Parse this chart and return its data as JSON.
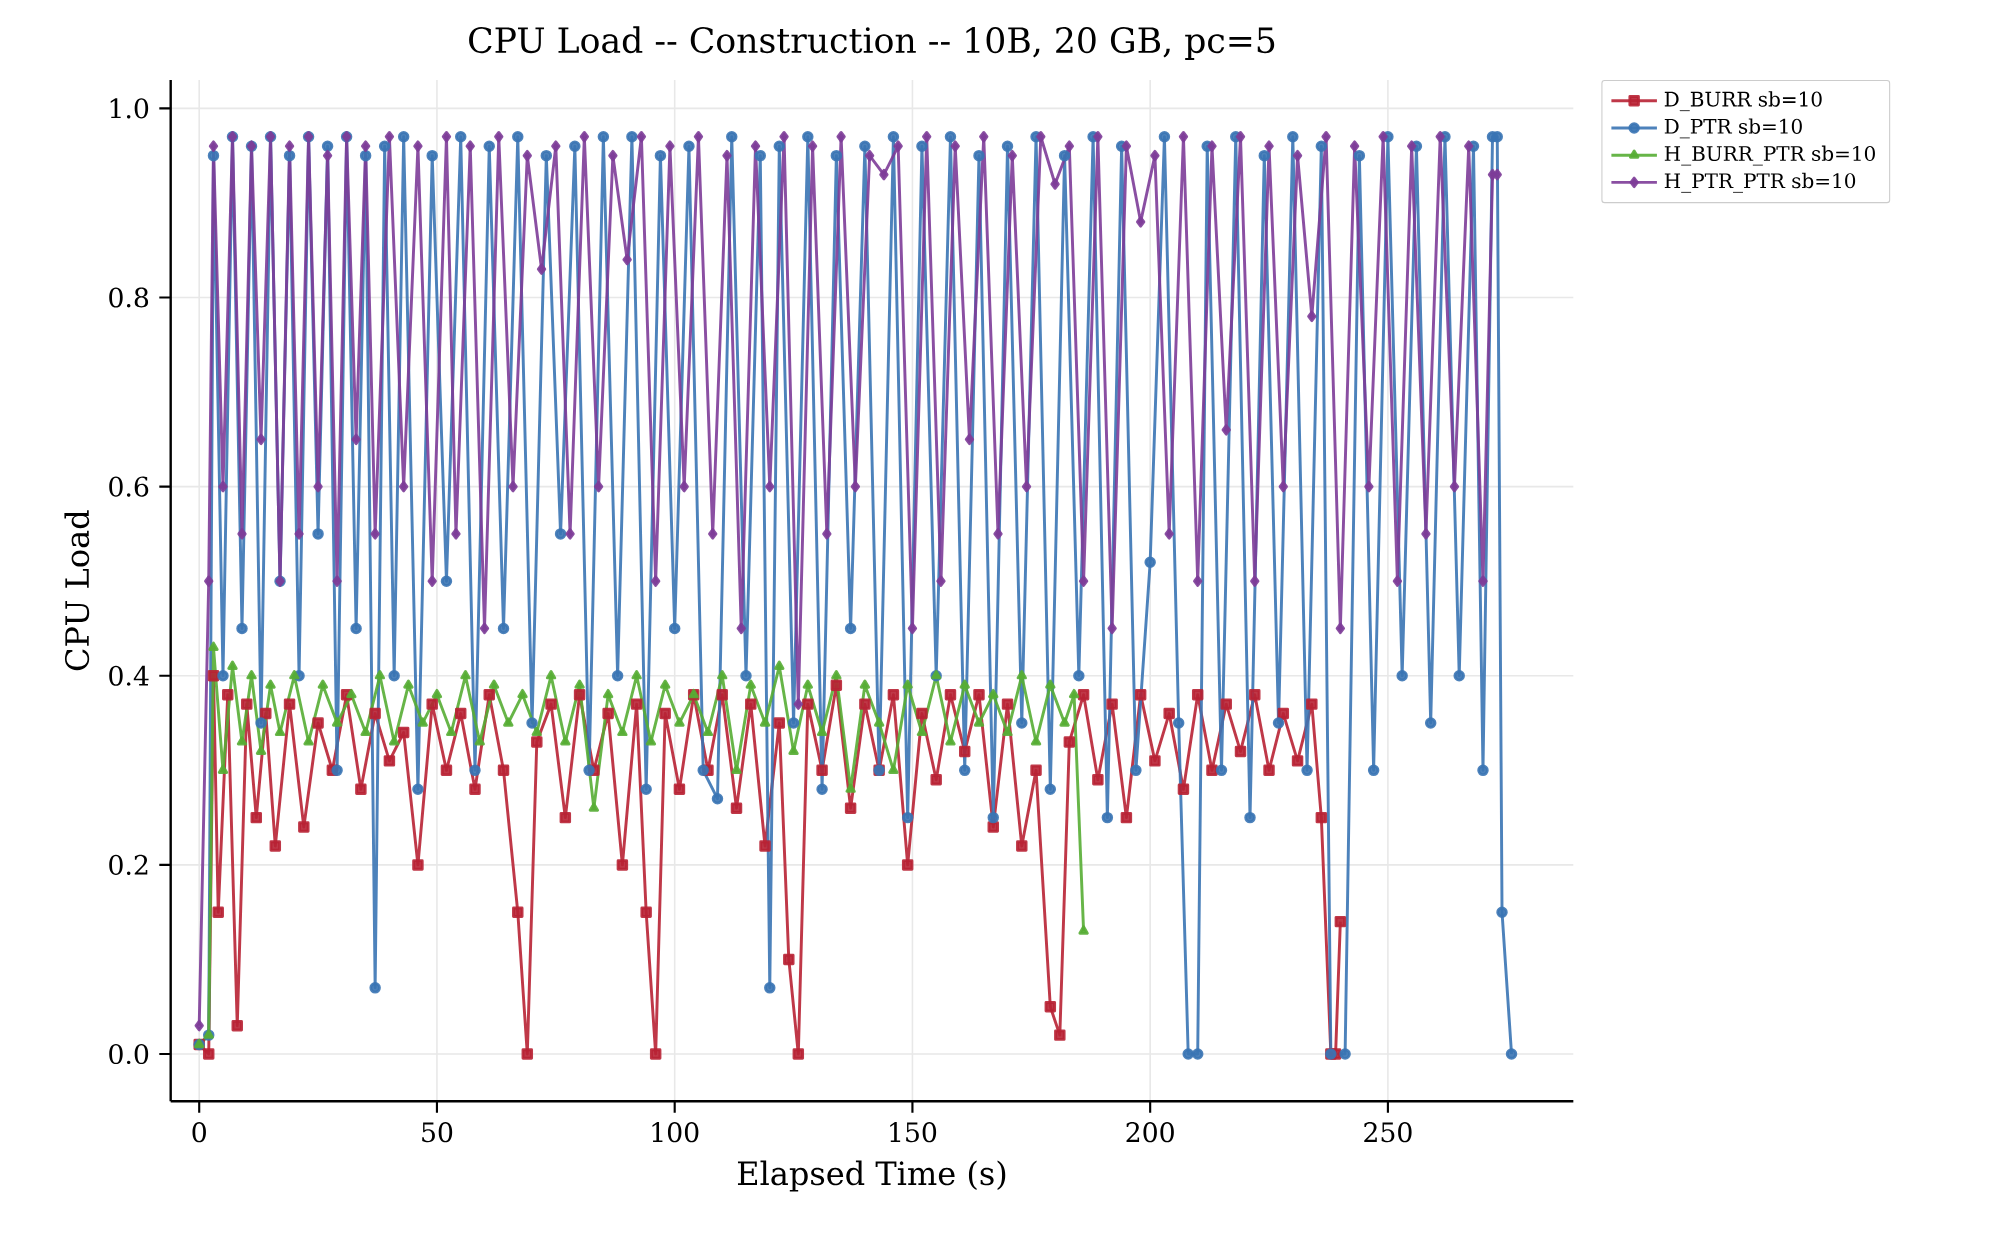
{
  "chart_data": {
    "type": "line",
    "title": "CPU Load -- Construction -- 10B, 20 GB, pc=5",
    "xlabel": "Elapsed Time (s)",
    "ylabel": "CPU Load",
    "xlim": [
      -6,
      289
    ],
    "ylim": [
      -0.05,
      1.03
    ],
    "xticks": [
      0,
      50,
      100,
      150,
      200,
      250
    ],
    "yticks": [
      {
        "value": 0,
        "label": "0.0"
      },
      {
        "value": 0.2,
        "label": "0.2"
      },
      {
        "value": 0.4,
        "label": "0.4"
      },
      {
        "value": 0.6,
        "label": "0.6"
      },
      {
        "value": 0.8,
        "label": "0.8"
      },
      {
        "value": 1.0,
        "label": "1.0"
      }
    ],
    "grid": true,
    "legend": "top right",
    "series": [
      {
        "name": "D_BURR sb=10",
        "color": "#b82234",
        "marker": "square",
        "x": [
          0,
          2,
          3,
          4,
          6,
          8,
          10,
          12,
          14,
          16,
          19,
          22,
          25,
          28,
          31,
          34,
          37,
          40,
          43,
          46,
          49,
          52,
          55,
          58,
          61,
          64,
          67,
          69,
          71,
          74,
          77,
          80,
          83,
          86,
          89,
          92,
          94,
          96,
          98,
          101,
          104,
          107,
          110,
          113,
          116,
          119,
          122,
          124,
          126,
          128,
          131,
          134,
          137,
          140,
          143,
          146,
          149,
          152,
          155,
          158,
          161,
          164,
          167,
          170,
          173,
          176,
          179,
          181,
          183,
          186,
          189,
          192,
          195,
          198,
          201,
          204,
          207,
          210,
          213,
          216,
          219,
          222,
          225,
          228,
          231,
          234,
          236,
          238,
          239,
          240
        ],
        "values": [
          0.01,
          0.0,
          0.4,
          0.15,
          0.38,
          0.03,
          0.37,
          0.25,
          0.36,
          0.22,
          0.37,
          0.24,
          0.35,
          0.3,
          0.38,
          0.28,
          0.36,
          0.31,
          0.34,
          0.2,
          0.37,
          0.3,
          0.36,
          0.28,
          0.38,
          0.3,
          0.15,
          0.0,
          0.33,
          0.37,
          0.25,
          0.38,
          0.3,
          0.36,
          0.2,
          0.37,
          0.15,
          0.0,
          0.36,
          0.28,
          0.38,
          0.3,
          0.38,
          0.26,
          0.37,
          0.22,
          0.35,
          0.1,
          0.0,
          0.37,
          0.3,
          0.39,
          0.26,
          0.37,
          0.3,
          0.38,
          0.2,
          0.36,
          0.29,
          0.38,
          0.32,
          0.38,
          0.24,
          0.37,
          0.22,
          0.3,
          0.05,
          0.02,
          0.33,
          0.38,
          0.29,
          0.37,
          0.25,
          0.38,
          0.31,
          0.36,
          0.28,
          0.38,
          0.3,
          0.37,
          0.32,
          0.38,
          0.3,
          0.36,
          0.31,
          0.37,
          0.25,
          0.0,
          0.0,
          0.14
        ]
      },
      {
        "name": "D_PTR sb=10",
        "color": "#3a74b4",
        "marker": "circle",
        "x": [
          0,
          2,
          3,
          5,
          7,
          9,
          11,
          13,
          15,
          17,
          19,
          21,
          23,
          25,
          27,
          29,
          31,
          33,
          35,
          37,
          39,
          41,
          43,
          46,
          49,
          52,
          55,
          58,
          61,
          64,
          67,
          70,
          73,
          76,
          79,
          82,
          85,
          88,
          91,
          94,
          97,
          100,
          103,
          106,
          109,
          112,
          115,
          118,
          120,
          122,
          125,
          128,
          131,
          134,
          137,
          140,
          143,
          146,
          149,
          152,
          155,
          158,
          161,
          164,
          167,
          170,
          173,
          176,
          179,
          182,
          185,
          188,
          191,
          194,
          197,
          200,
          203,
          206,
          208,
          210,
          212,
          215,
          218,
          221,
          224,
          227,
          230,
          233,
          236,
          238,
          241,
          244,
          247,
          250,
          253,
          256,
          259,
          262,
          265,
          268,
          270,
          272,
          273,
          274,
          276
        ],
        "values": [
          0.01,
          0.02,
          0.95,
          0.4,
          0.97,
          0.45,
          0.96,
          0.35,
          0.97,
          0.5,
          0.95,
          0.4,
          0.97,
          0.55,
          0.96,
          0.3,
          0.97,
          0.45,
          0.95,
          0.07,
          0.96,
          0.4,
          0.97,
          0.28,
          0.95,
          0.5,
          0.97,
          0.3,
          0.96,
          0.45,
          0.97,
          0.35,
          0.95,
          0.55,
          0.96,
          0.3,
          0.97,
          0.4,
          0.97,
          0.28,
          0.95,
          0.45,
          0.96,
          0.3,
          0.27,
          0.97,
          0.4,
          0.95,
          0.07,
          0.96,
          0.35,
          0.97,
          0.28,
          0.95,
          0.45,
          0.96,
          0.3,
          0.97,
          0.25,
          0.96,
          0.4,
          0.97,
          0.3,
          0.95,
          0.25,
          0.96,
          0.35,
          0.97,
          0.28,
          0.95,
          0.4,
          0.97,
          0.25,
          0.96,
          0.3,
          0.52,
          0.97,
          0.35,
          0.0,
          0.0,
          0.96,
          0.3,
          0.97,
          0.25,
          0.95,
          0.35,
          0.97,
          0.3,
          0.96,
          0.0,
          0.0,
          0.95,
          0.3,
          0.97,
          0.4,
          0.96,
          0.35,
          0.97,
          0.4,
          0.96,
          0.3,
          0.97,
          0.97,
          0.15,
          0.0
        ]
      },
      {
        "name": "H_BURR_PTR sb=10",
        "color": "#56ad34",
        "marker": "triangle",
        "x": [
          0,
          2,
          3,
          5,
          7,
          9,
          11,
          13,
          15,
          17,
          20,
          23,
          26,
          29,
          32,
          35,
          38,
          41,
          44,
          47,
          50,
          53,
          56,
          59,
          62,
          65,
          68,
          71,
          74,
          77,
          80,
          83,
          86,
          89,
          92,
          95,
          98,
          101,
          104,
          107,
          110,
          113,
          116,
          119,
          122,
          125,
          128,
          131,
          134,
          137,
          140,
          143,
          146,
          149,
          152,
          155,
          158,
          161,
          164,
          167,
          170,
          173,
          176,
          179,
          182,
          184,
          186
        ],
        "values": [
          0.01,
          0.02,
          0.43,
          0.3,
          0.41,
          0.33,
          0.4,
          0.32,
          0.39,
          0.34,
          0.4,
          0.33,
          0.39,
          0.35,
          0.38,
          0.34,
          0.4,
          0.33,
          0.39,
          0.35,
          0.38,
          0.34,
          0.4,
          0.33,
          0.39,
          0.35,
          0.38,
          0.34,
          0.4,
          0.33,
          0.39,
          0.26,
          0.38,
          0.34,
          0.4,
          0.33,
          0.39,
          0.35,
          0.38,
          0.34,
          0.4,
          0.3,
          0.39,
          0.35,
          0.41,
          0.32,
          0.39,
          0.34,
          0.4,
          0.28,
          0.39,
          0.35,
          0.3,
          0.39,
          0.34,
          0.4,
          0.33,
          0.39,
          0.35,
          0.38,
          0.34,
          0.4,
          0.33,
          0.39,
          0.35,
          0.38,
          0.13
        ]
      },
      {
        "name": "H_PTR_PTR sb=10",
        "color": "#7d3c98",
        "marker": "diamond",
        "x": [
          0,
          2,
          3,
          5,
          7,
          9,
          11,
          13,
          15,
          17,
          19,
          21,
          23,
          25,
          27,
          29,
          31,
          33,
          35,
          37,
          40,
          43,
          46,
          49,
          52,
          54,
          57,
          60,
          63,
          66,
          69,
          72,
          75,
          78,
          81,
          84,
          87,
          90,
          93,
          96,
          99,
          102,
          105,
          108,
          111,
          114,
          117,
          120,
          123,
          126,
          129,
          132,
          135,
          138,
          141,
          144,
          147,
          150,
          153,
          156,
          159,
          162,
          165,
          168,
          171,
          174,
          177,
          180,
          183,
          186,
          189,
          192,
          195,
          198,
          201,
          204,
          207,
          210,
          213,
          216,
          219,
          222,
          225,
          228,
          231,
          234,
          237,
          240,
          243,
          246,
          249,
          252,
          255,
          258,
          261,
          264,
          267,
          270,
          272,
          273
        ],
        "values": [
          0.03,
          0.5,
          0.96,
          0.6,
          0.97,
          0.55,
          0.96,
          0.65,
          0.97,
          0.5,
          0.96,
          0.55,
          0.97,
          0.6,
          0.95,
          0.5,
          0.97,
          0.65,
          0.96,
          0.55,
          0.97,
          0.6,
          0.96,
          0.5,
          0.97,
          0.55,
          0.96,
          0.45,
          0.97,
          0.6,
          0.95,
          0.83,
          0.96,
          0.55,
          0.97,
          0.6,
          0.95,
          0.84,
          0.97,
          0.5,
          0.96,
          0.6,
          0.97,
          0.55,
          0.95,
          0.45,
          0.96,
          0.6,
          0.97,
          0.37,
          0.96,
          0.55,
          0.97,
          0.6,
          0.95,
          0.93,
          0.96,
          0.45,
          0.97,
          0.5,
          0.96,
          0.65,
          0.97,
          0.55,
          0.95,
          0.6,
          0.97,
          0.92,
          0.96,
          0.5,
          0.97,
          0.45,
          0.96,
          0.88,
          0.95,
          0.55,
          0.97,
          0.5,
          0.96,
          0.66,
          0.97,
          0.5,
          0.96,
          0.6,
          0.95,
          0.78,
          0.97,
          0.45,
          0.96,
          0.6,
          0.97,
          0.5,
          0.96,
          0.55,
          0.97,
          0.6,
          0.96,
          0.5,
          0.93,
          0.93
        ]
      }
    ]
  }
}
